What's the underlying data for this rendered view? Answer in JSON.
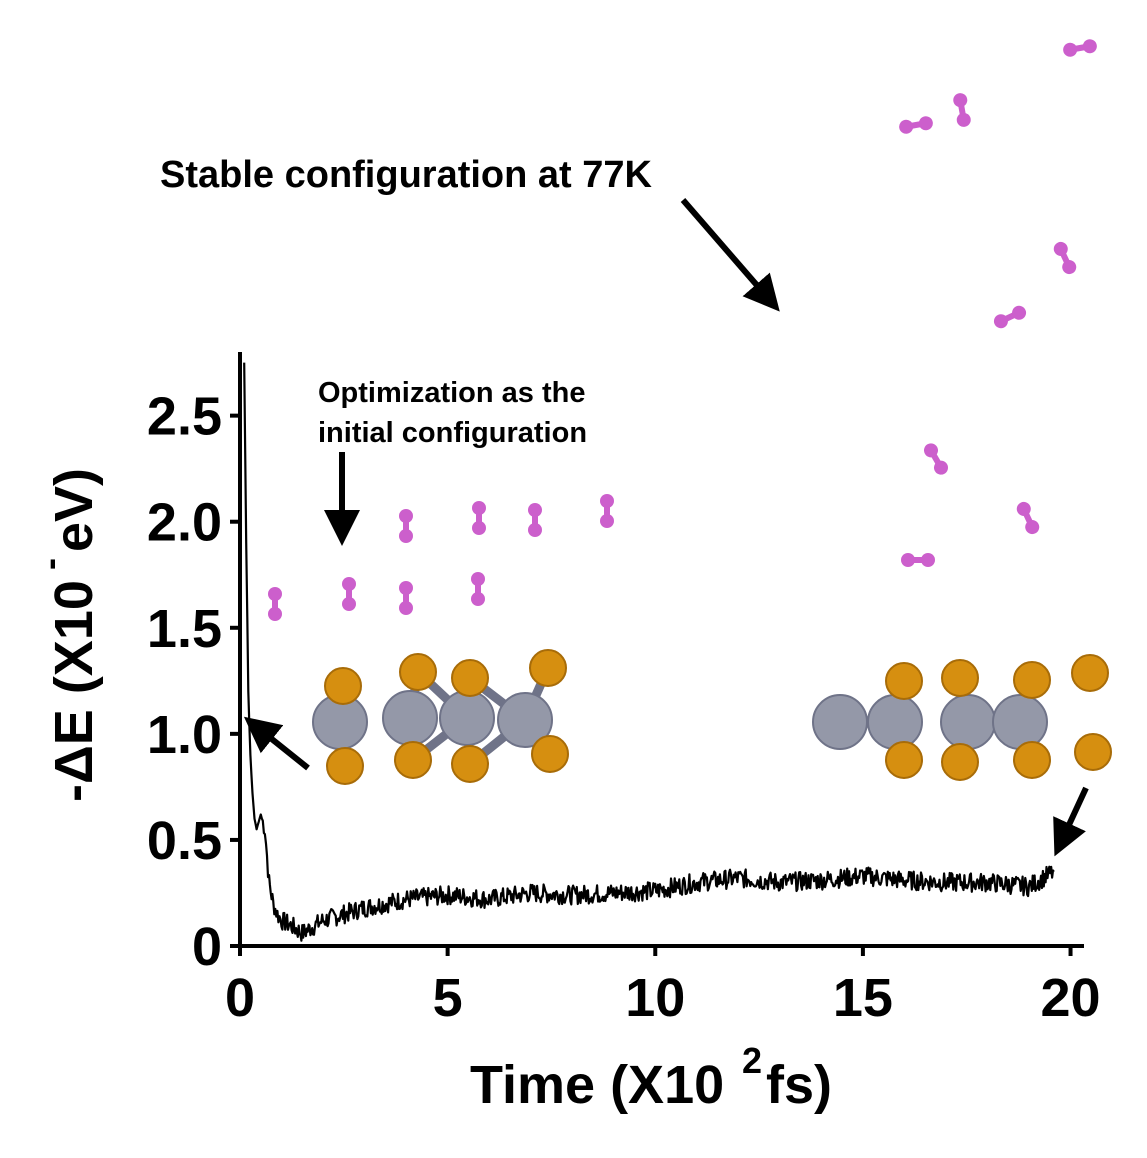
{
  "chart_data": {
    "type": "line",
    "title": "",
    "xlabel": "Time (X10",
    "xlabel_exp": "2",
    "xlabel_unit": "fs)",
    "ylabel": "-ΔE (X10",
    "ylabel_exp": "-",
    "ylabel_unit": "eV)",
    "xlim": [
      0,
      20.3
    ],
    "ylim": [
      0,
      2.8
    ],
    "xticks": [
      0,
      5,
      10,
      15,
      20
    ],
    "xtick_labels": [
      "0",
      "5",
      "10",
      "15",
      "20"
    ],
    "yticks": [
      0,
      0.5,
      1.0,
      1.5,
      2.0,
      2.5
    ],
    "ytick_labels": [
      "0",
      "0.5",
      "1.0",
      "1.5",
      "2.0",
      "2.5"
    ],
    "grid": false,
    "legend": "none",
    "series": [
      {
        "color": "#000000",
        "x": [
          0.1,
          0.15,
          0.2,
          0.25,
          0.3,
          0.35,
          0.4,
          0.5,
          0.6,
          0.7,
          0.8,
          0.9,
          1.0,
          1.2,
          1.5,
          2.0,
          2.5,
          3.0,
          3.5,
          4.0,
          5.0,
          6.0,
          7.0,
          8.0,
          9.0,
          10.0,
          11.0,
          12.0,
          13.0,
          14.0,
          15.0,
          16.0,
          17.0,
          18.0,
          19.0,
          19.6
        ],
        "y": [
          2.75,
          1.9,
          1.2,
          0.9,
          0.72,
          0.6,
          0.55,
          0.62,
          0.55,
          0.3,
          0.2,
          0.15,
          0.12,
          0.1,
          0.06,
          0.12,
          0.15,
          0.18,
          0.2,
          0.22,
          0.24,
          0.22,
          0.25,
          0.24,
          0.25,
          0.26,
          0.3,
          0.32,
          0.3,
          0.31,
          0.33,
          0.31,
          0.3,
          0.3,
          0.28,
          0.35
        ]
      }
    ],
    "annotations": {
      "stable": "Stable configuration at 77K",
      "optimization_line1": "Optimization as the",
      "optimization_line2": "initial configuration"
    }
  },
  "colors": {
    "hydrogen": "#cc5fcc",
    "metal": "#9498a8",
    "sulfur": "#d68f10",
    "line": "#000000"
  }
}
